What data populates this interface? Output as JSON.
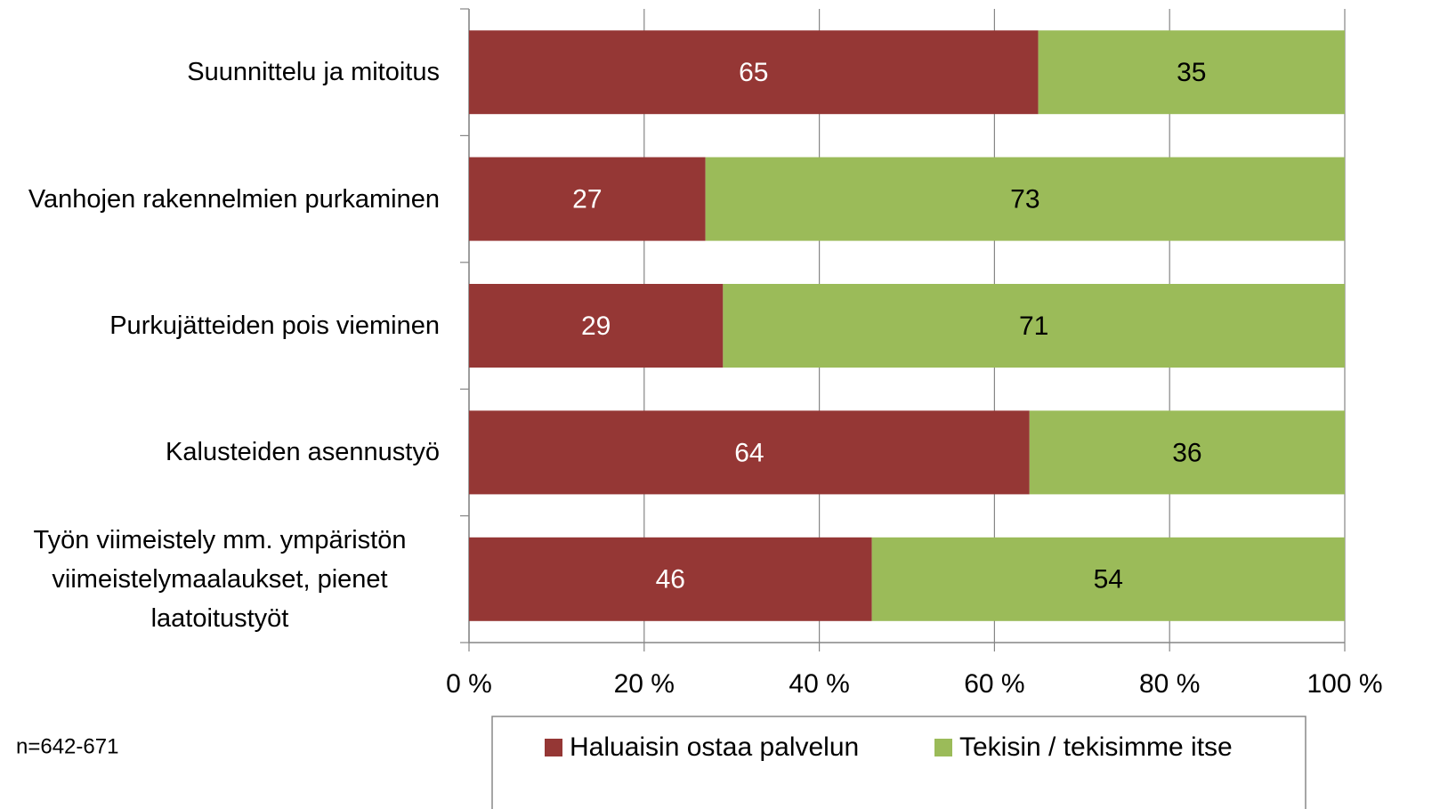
{
  "chart_data": {
    "type": "stacked_barh",
    "categories": [
      "Suunnittelu ja mitoitus",
      "Vanhojen rakennelmien purkaminen",
      "Purkujätteiden pois vieminen",
      "Kalusteiden asennustyö",
      "Työn viimeistely mm. ympäristön viimeistelymaalaukset, pienet laatoitustyöt"
    ],
    "series": [
      {
        "name": "Haluaisin ostaa palvelun",
        "color": "#953735",
        "values": [
          65,
          27,
          29,
          64,
          46
        ]
      },
      {
        "name": "Tekisin / tekisimme itse",
        "color": "#9bbb59",
        "values": [
          35,
          73,
          71,
          36,
          54
        ]
      }
    ],
    "xlim": [
      0,
      100
    ],
    "xticks": [
      {
        "value": 0,
        "label": "0 %"
      },
      {
        "value": 20,
        "label": "20 %"
      },
      {
        "value": 40,
        "label": "40 %"
      },
      {
        "value": 60,
        "label": "60 %"
      },
      {
        "value": 80,
        "label": "80 %"
      },
      {
        "value": 100,
        "label": "100 %"
      }
    ],
    "grid": true,
    "legend": "bottom",
    "note": "n=642-671"
  }
}
